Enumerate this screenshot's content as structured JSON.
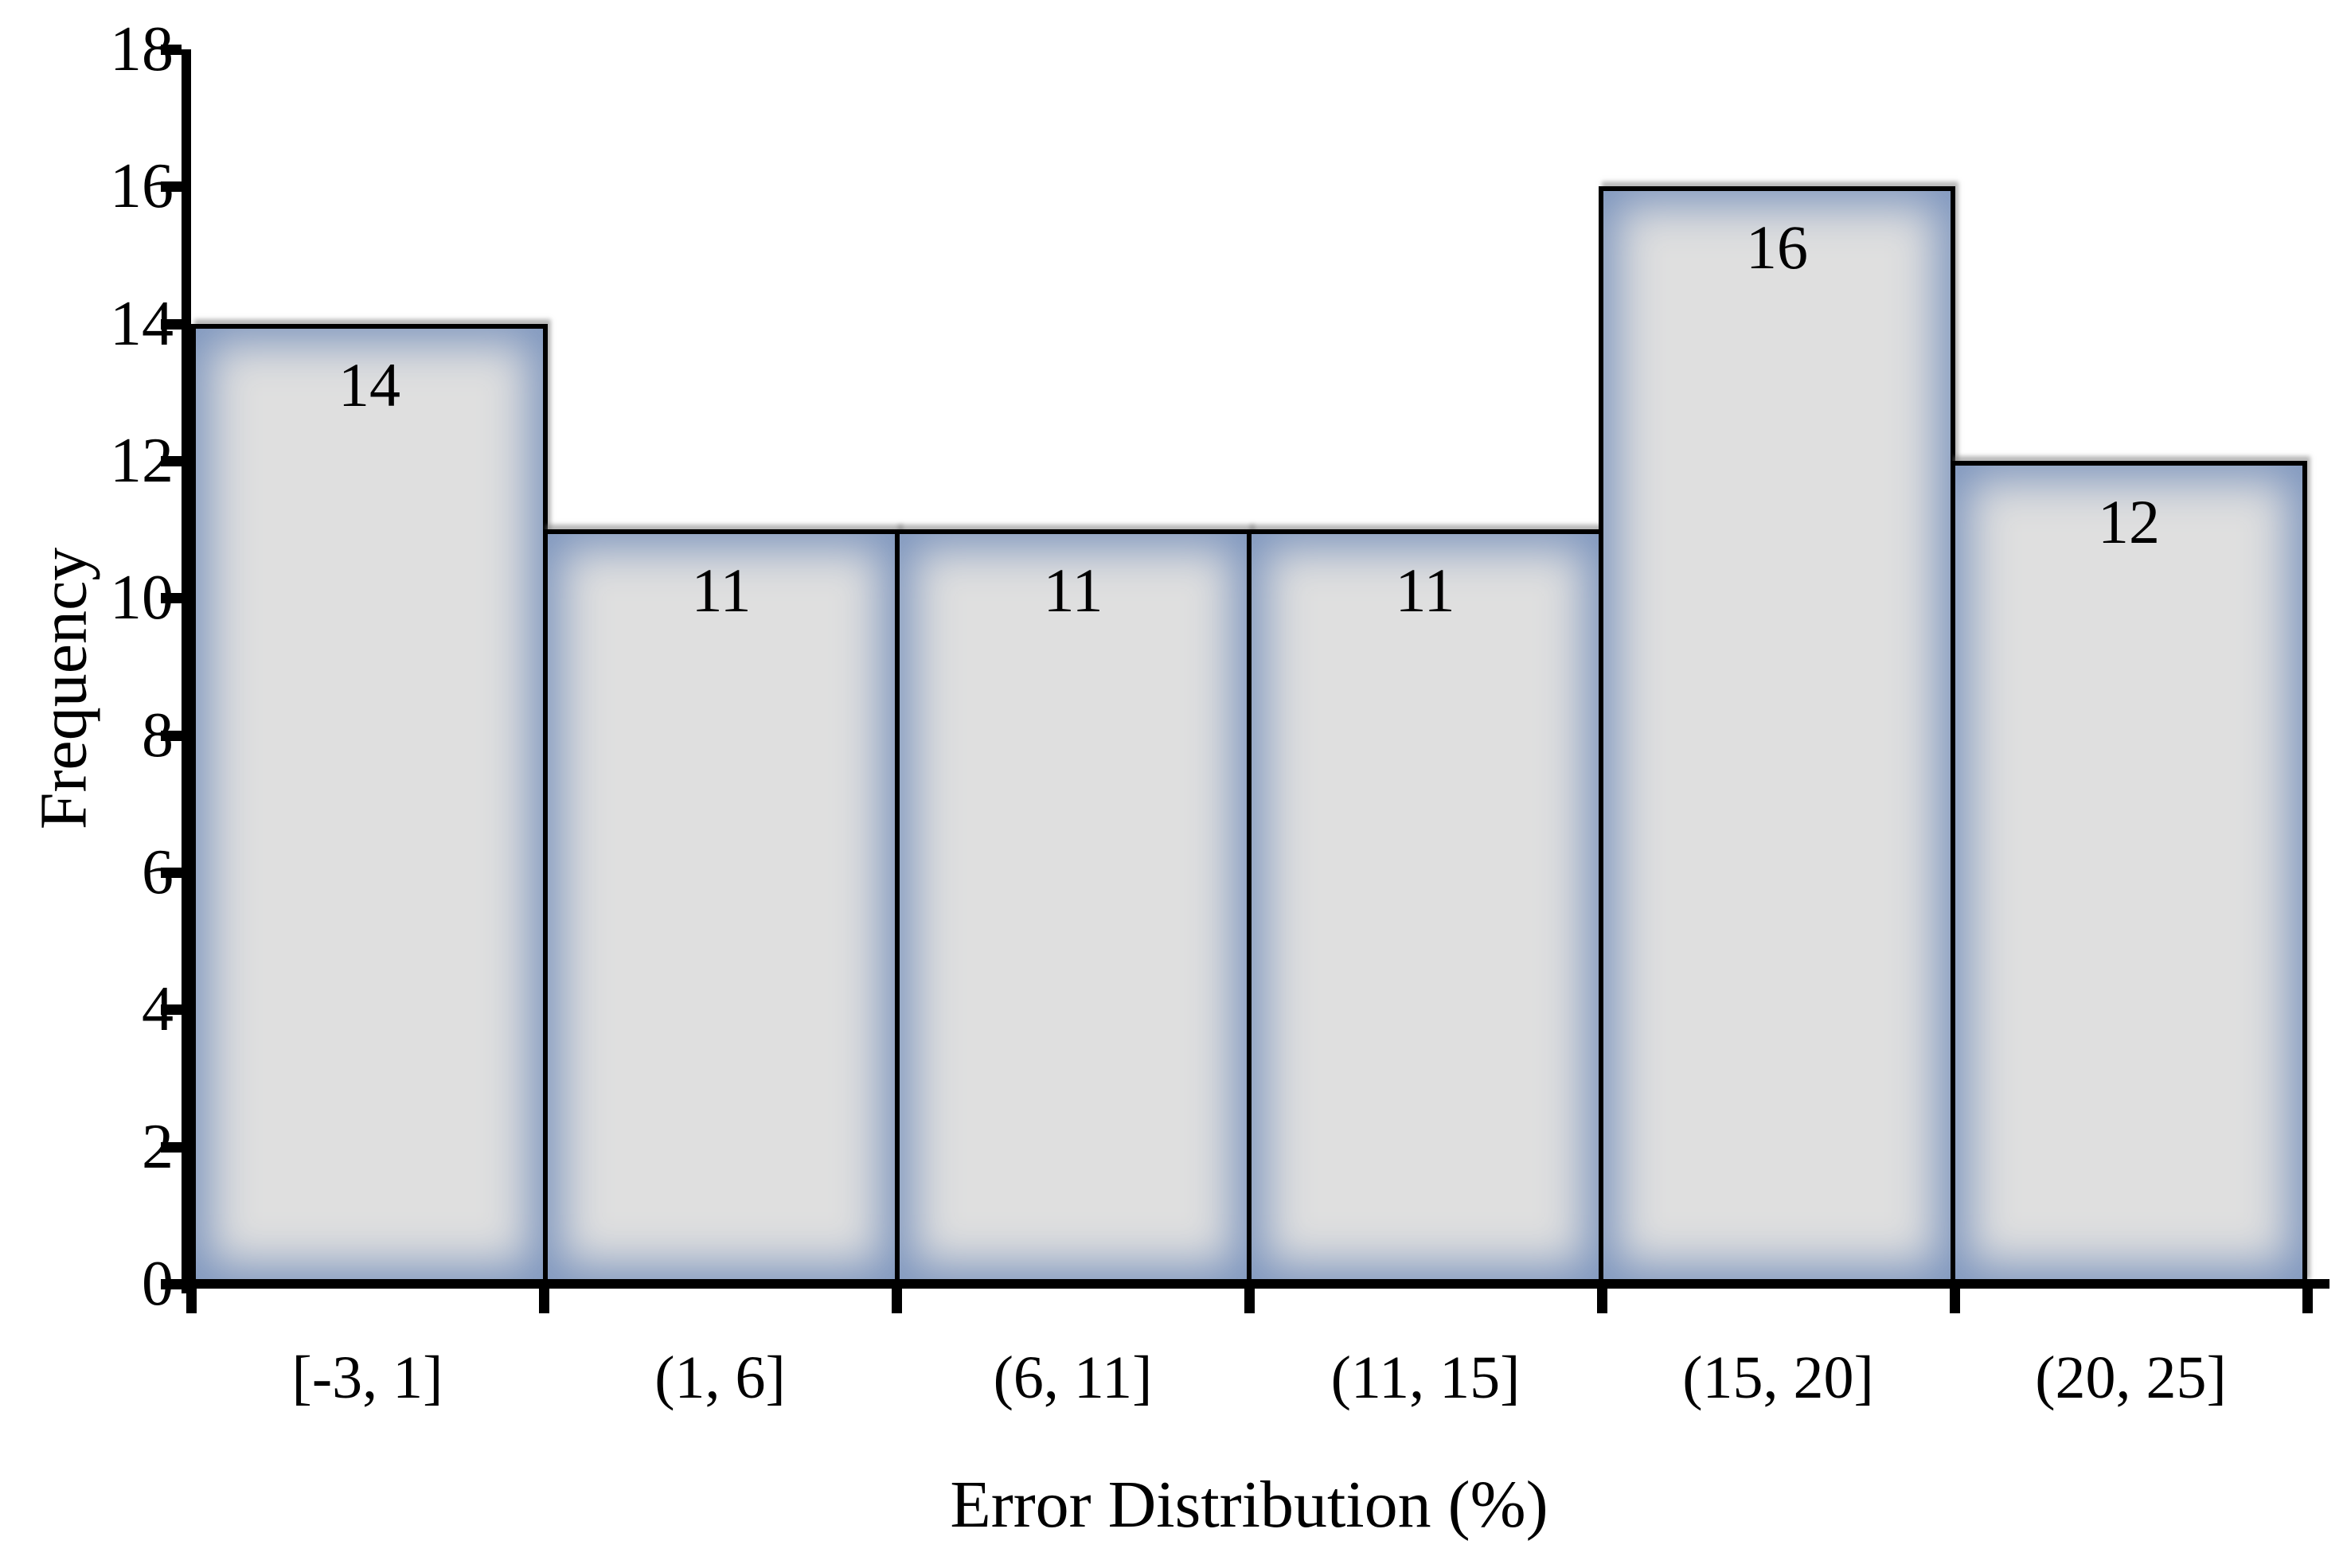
{
  "chart_data": {
    "type": "bar",
    "subtype": "histogram",
    "title": "",
    "xlabel": "Error Distribution (%)",
    "ylabel": "Frequency",
    "categories": [
      "[-3, 1]",
      "(1, 6]",
      "(6, 11]",
      "(11, 15]",
      "(15, 20]",
      "(20, 25]"
    ],
    "values": [
      14,
      11,
      11,
      11,
      16,
      12
    ],
    "data_labels": [
      "14",
      "11",
      "11",
      "11",
      "16",
      "12"
    ],
    "ylim": [
      0,
      18
    ],
    "yticks": [
      0,
      2,
      4,
      6,
      8,
      10,
      12,
      14,
      16,
      18
    ],
    "grid": false,
    "legend": "none",
    "colors": {
      "bar_fill_center": "#dfdfdf",
      "bar_edge_glow": "#7e96be",
      "bar_border": "#000000",
      "axis": "#000000",
      "text": "#000000",
      "background": "#ffffff"
    }
  }
}
